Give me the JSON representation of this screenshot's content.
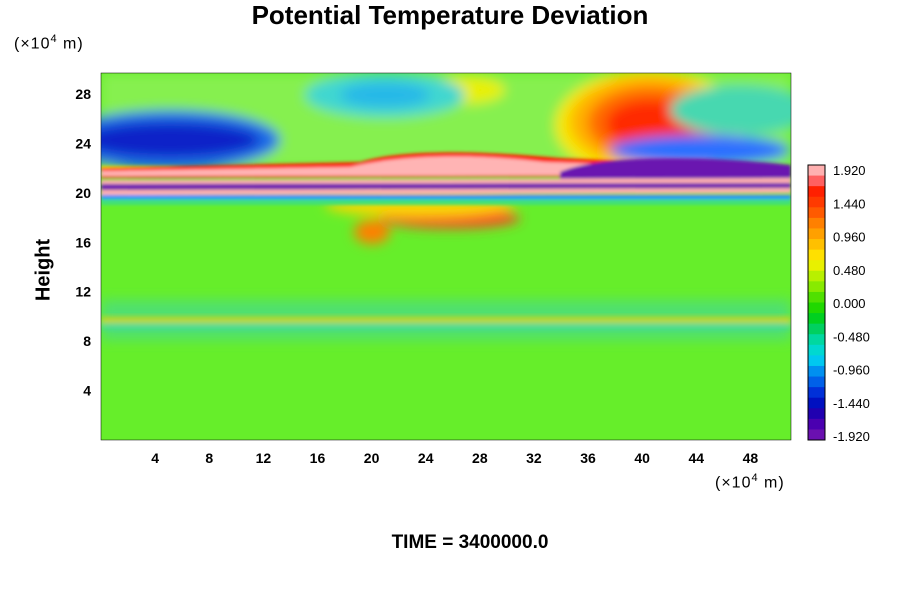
{
  "chart_data": {
    "type": "heatmap",
    "title": "Potential Temperature Deviation",
    "ylabel": "Height",
    "y_unit": {
      "prefix": "(×10",
      "exp": "4",
      "suffix": " m)"
    },
    "x_unit": {
      "prefix": "(×10",
      "exp": "4",
      "suffix": " m)"
    },
    "xlim": [
      0,
      51
    ],
    "ylim": [
      0,
      29.7
    ],
    "x_ticks": [
      "4",
      "8",
      "12",
      "16",
      "20",
      "24",
      "28",
      "32",
      "36",
      "40",
      "44",
      "48"
    ],
    "y_ticks": [
      "4",
      "8",
      "12",
      "16",
      "20",
      "24",
      "28"
    ],
    "colorbar": {
      "range": [
        -1.92,
        1.92
      ],
      "tick_labels": [
        "1.920",
        "1.440",
        "0.960",
        "0.480",
        "0.000",
        "-0.480",
        "-0.960",
        "-1.440",
        "-1.920"
      ],
      "colormap": "rainbow (purple → blue → cyan → green → yellow → orange → red → pink)"
    },
    "features": [
      {
        "x": 41,
        "y": 25.5,
        "value": 1.5
      },
      {
        "x": 22,
        "y": 22.5,
        "value": 1.9
      },
      {
        "x": 38,
        "y": 22.3,
        "value": -1.9
      },
      {
        "x": 4,
        "y": 24,
        "value": -1.6
      },
      {
        "x": 21,
        "y": 28.5,
        "value": -0.8
      },
      {
        "x": 23,
        "y": 18,
        "value": 1.3
      },
      {
        "x": 25,
        "y": 20.5,
        "value": -1.9
      },
      {
        "x": 25,
        "y": 21.2,
        "value": 1.9
      }
    ]
  },
  "time_label": "TIME = 3400000.0"
}
